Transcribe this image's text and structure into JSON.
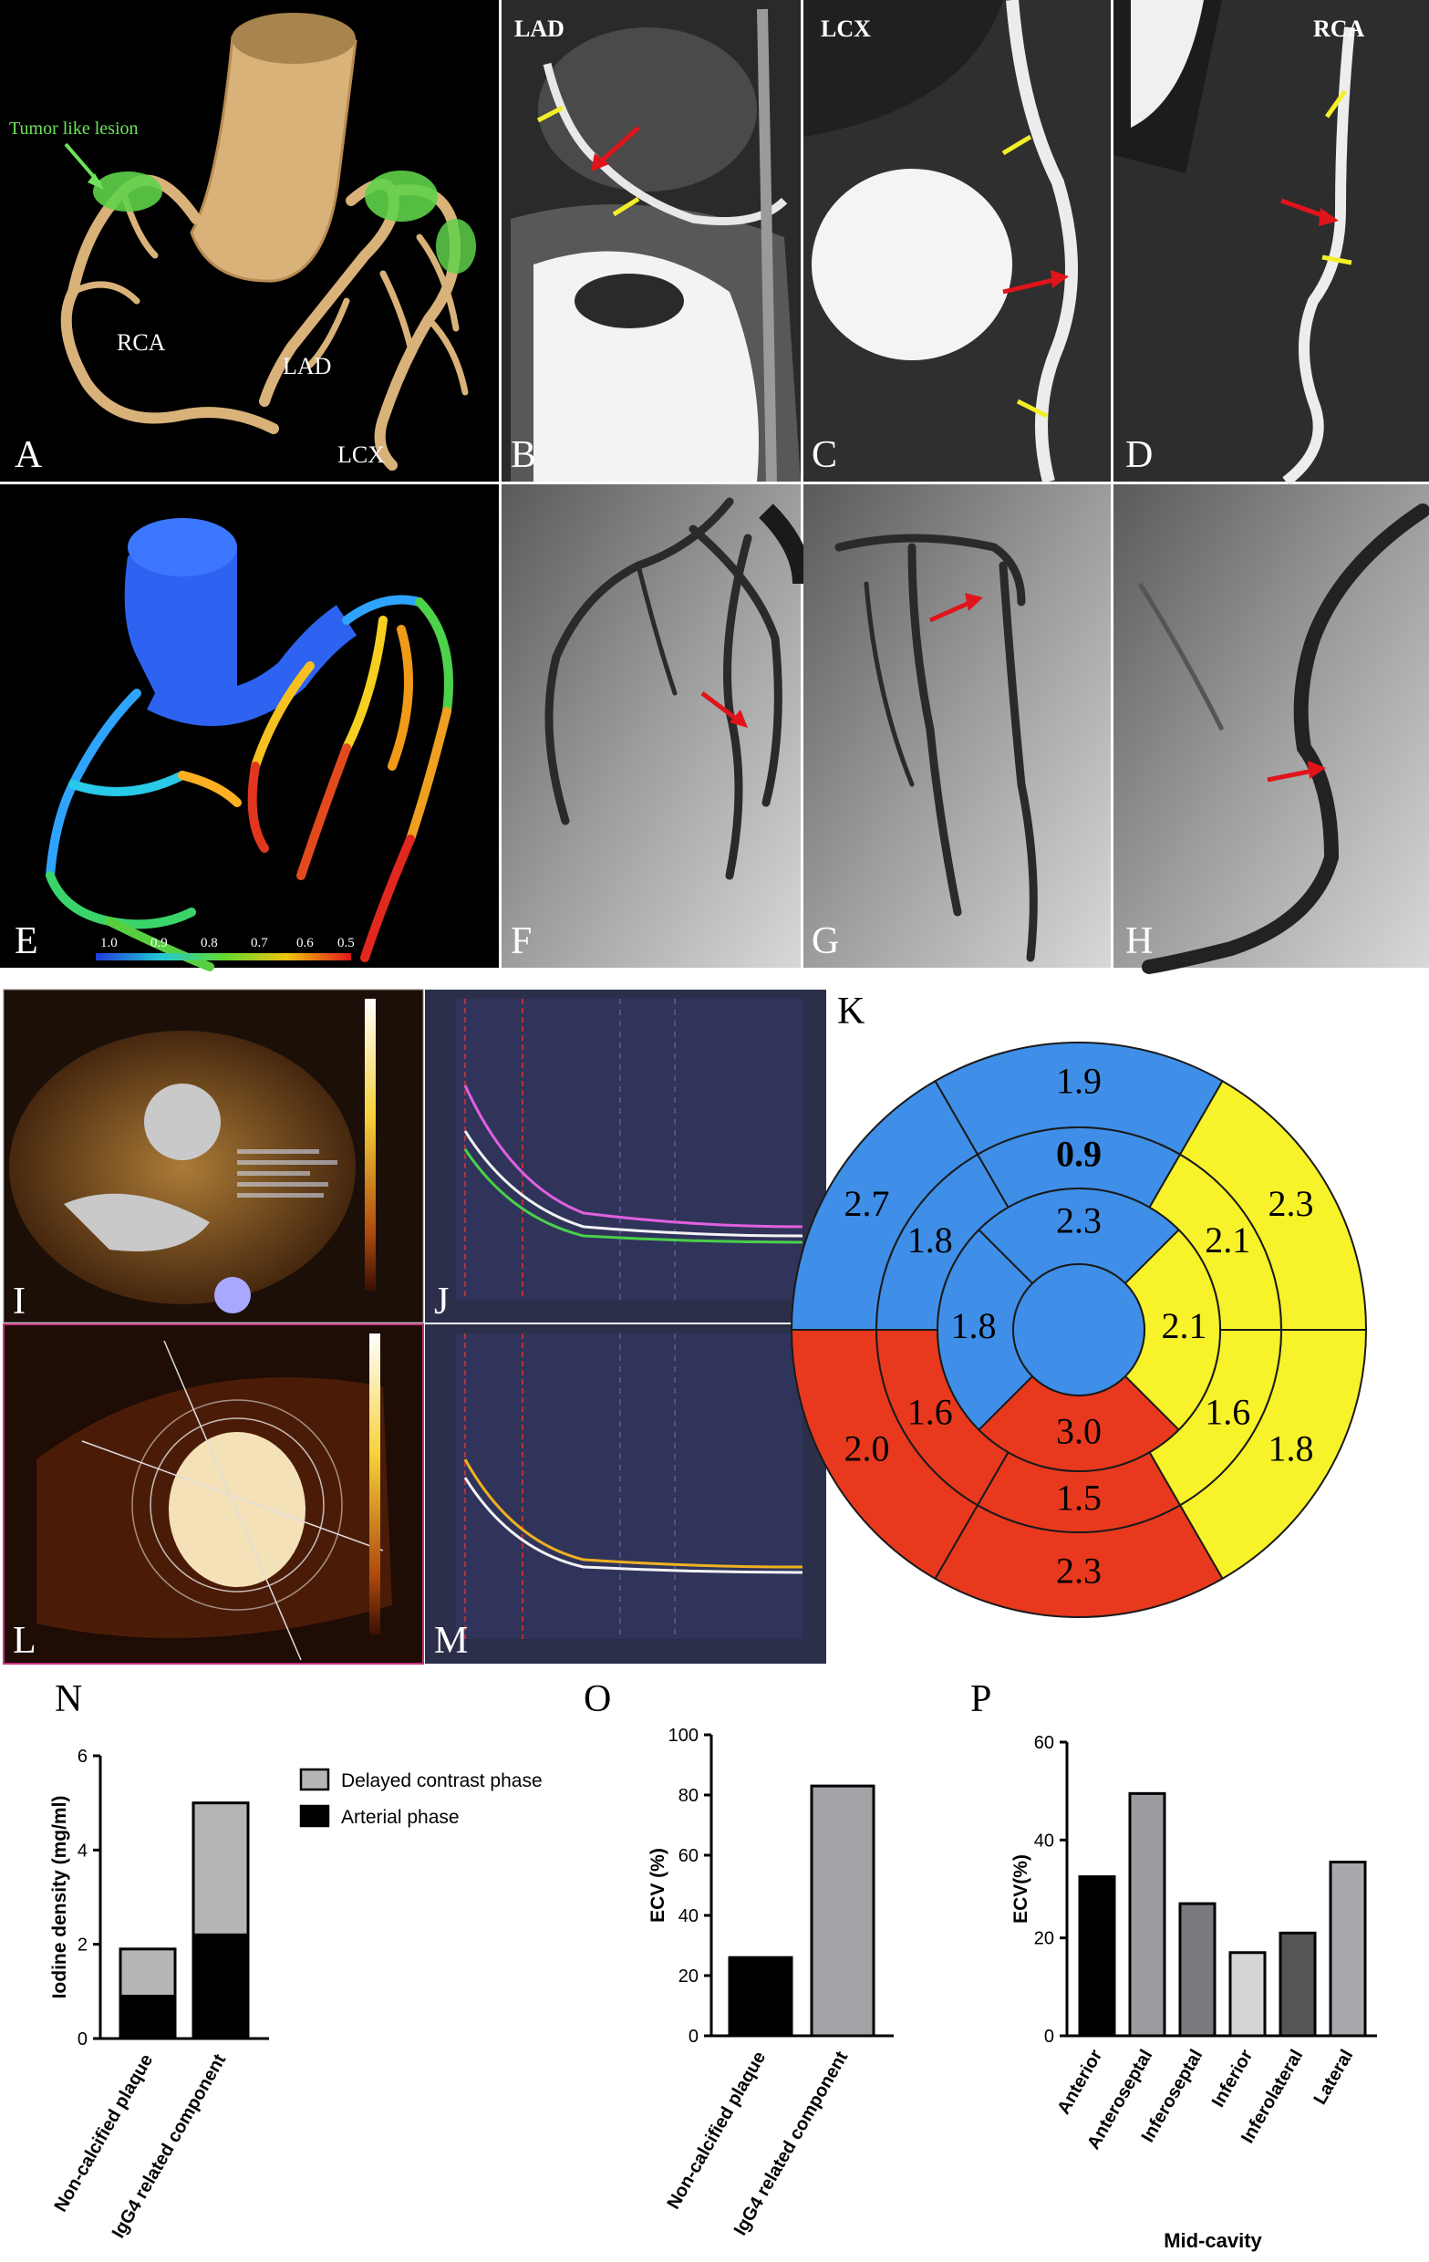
{
  "panels": {
    "A": {
      "letter": "A",
      "annotation": "Tumor like lesion",
      "labels": {
        "rca": "RCA",
        "lad": "LAD",
        "lcx": "LCX"
      }
    },
    "B": {
      "letter": "B",
      "header": "LAD"
    },
    "C": {
      "letter": "C",
      "header": "LCX"
    },
    "D": {
      "letter": "D",
      "header": "RCA"
    },
    "E": {
      "letter": "E",
      "colorbar_ticks": [
        "1.0",
        "0.9",
        "0.8",
        "0.7",
        "0.6",
        "0.5"
      ]
    },
    "F": {
      "letter": "F"
    },
    "G": {
      "letter": "G"
    },
    "H": {
      "letter": "H"
    },
    "I": {
      "letter": "I"
    },
    "J": {
      "letter": "J"
    },
    "K": {
      "letter": "K"
    },
    "L": {
      "letter": "L"
    },
    "M": {
      "letter": "M"
    },
    "N": {
      "letter": "N"
    },
    "O": {
      "letter": "O"
    },
    "P": {
      "letter": "P"
    }
  },
  "colors": {
    "blue": "#3f8fe8",
    "yellow": "#f7f22a",
    "red": "#e8391e",
    "vessel": "#d9b27a",
    "lesion": "#5fd14a",
    "arrow": "#e0141b",
    "marker": "#f2ef2a"
  },
  "bullseye": {
    "outer": [
      "1.9",
      "2.3",
      "1.8",
      "2.3",
      "2.0",
      "2.7"
    ],
    "middle": [
      "0.9",
      "2.1",
      "1.6",
      "1.5",
      "1.6",
      "1.8"
    ],
    "inner": [
      "2.3",
      "2.1",
      "3.0",
      "1.8"
    ],
    "outer_colors": [
      "blue",
      "yellow",
      "yellow",
      "red",
      "red",
      "blue"
    ],
    "middle_colors": [
      "blue",
      "yellow",
      "yellow",
      "red",
      "red",
      "blue"
    ],
    "inner_colors": [
      "blue",
      "yellow",
      "red",
      "blue"
    ],
    "apex_color": "blue"
  },
  "chart_data": [
    {
      "type": "bar",
      "panel": "N",
      "stacked": true,
      "ylabel": "Iodine density (mg/ml)",
      "ylim": [
        0,
        6
      ],
      "yticks": [
        "0",
        "2",
        "4",
        "6"
      ],
      "categories": [
        "Non-calcified plaque",
        "IgG4 related component"
      ],
      "series": [
        {
          "name": "Arterial phase",
          "values": [
            0.9,
            2.2
          ],
          "color": "#000000"
        },
        {
          "name": "Delayed contrast phase",
          "values": [
            1.0,
            2.8
          ],
          "color": "#b5b5b8"
        }
      ],
      "legend": "top-right"
    },
    {
      "type": "bar",
      "panel": "O",
      "ylabel": "ECV (%)",
      "ylim": [
        0,
        100
      ],
      "yticks": [
        "0",
        "20",
        "40",
        "60",
        "80",
        "100"
      ],
      "categories": [
        "Non-calcified plaque",
        "IgG4 related component"
      ],
      "values": [
        26,
        83
      ],
      "colors": [
        "#000000",
        "#a3a3a8"
      ]
    },
    {
      "type": "bar",
      "panel": "P",
      "ylabel": "ECV(%)",
      "xlabel": "Mid-cavity",
      "ylim": [
        0,
        60
      ],
      "yticks": [
        "0",
        "20",
        "40",
        "60"
      ],
      "categories": [
        "Anterior",
        "Anteroseptal",
        "Inferoseptal",
        "Inferior",
        "Inferolateral",
        "Lateral"
      ],
      "values": [
        32.5,
        49.5,
        27,
        17,
        21,
        35.5
      ],
      "colors": [
        "#000000",
        "#9b9ba0",
        "#7a7a7e",
        "#d5d5d7",
        "#555558",
        "#a8a8ac"
      ]
    }
  ]
}
